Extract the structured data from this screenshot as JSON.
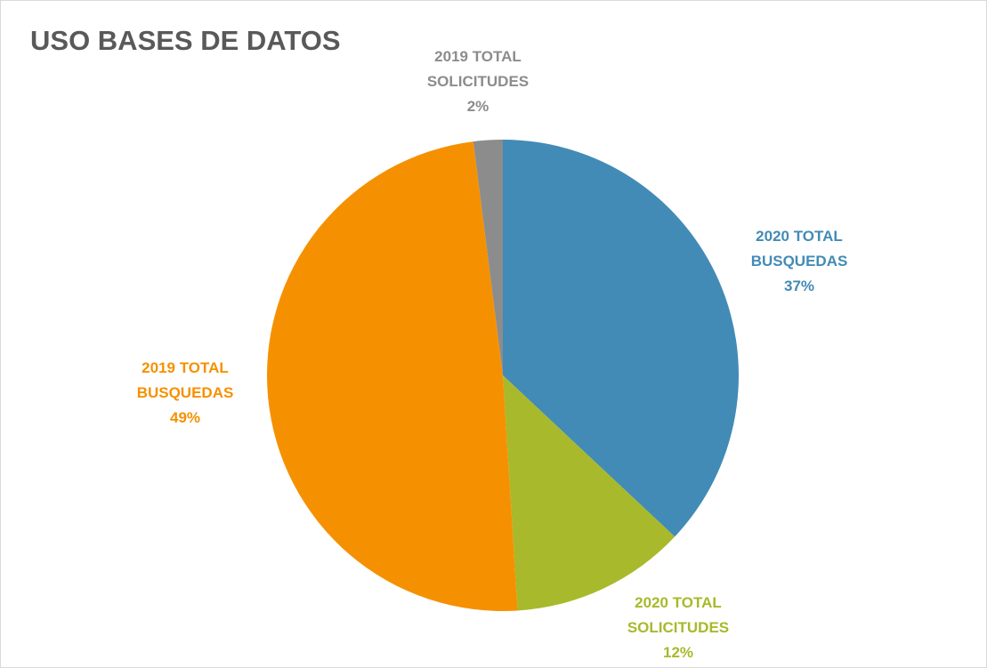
{
  "chart_data": {
    "type": "pie",
    "title": "USO BASES DE DATOS",
    "categories": [
      "2020 TOTAL BUSQUEDAS",
      "2020 TOTAL SOLICITUDES",
      "2019 TOTAL BUSQUEDAS",
      "2019 TOTAL SOLICITUDES"
    ],
    "values": [
      37,
      12,
      49,
      2
    ],
    "value_labels": [
      "37%",
      "12%",
      "49%",
      "2%"
    ],
    "colors": [
      "#428bb6",
      "#a8b92b",
      "#f59100",
      "#8c8c8c"
    ]
  }
}
